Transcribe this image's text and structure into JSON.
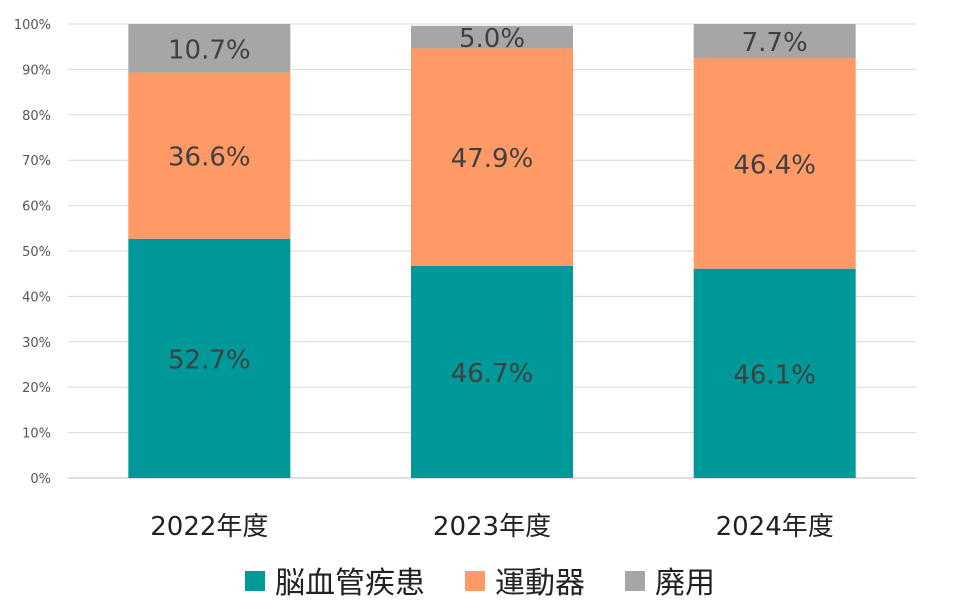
{
  "chart_data": {
    "type": "bar",
    "stacked": true,
    "categories": [
      "2022年度",
      "2023年度",
      "2024年度"
    ],
    "series": [
      {
        "name": "脳血管疾患",
        "values": [
          52.7,
          46.7,
          46.1
        ],
        "labels": [
          "52.7%",
          "46.7%",
          "46.1%"
        ],
        "color": "#009999"
      },
      {
        "name": "運動器",
        "values": [
          36.6,
          47.9,
          46.4
        ],
        "labels": [
          "36.6%",
          "47.9%",
          "46.4%"
        ],
        "color": "#FF9966"
      },
      {
        "name": "廃用",
        "values": [
          10.7,
          5.0,
          7.7
        ],
        "labels": [
          "10.7%",
          "5.0%",
          "7.7%"
        ],
        "color": "#A6A6A6"
      }
    ],
    "ylim": [
      0,
      100
    ],
    "yticks": [
      "0%",
      "10%",
      "20%",
      "30%",
      "40%",
      "50%",
      "60%",
      "70%",
      "80%",
      "90%",
      "100%"
    ],
    "grid": true,
    "legend": "bottom"
  }
}
